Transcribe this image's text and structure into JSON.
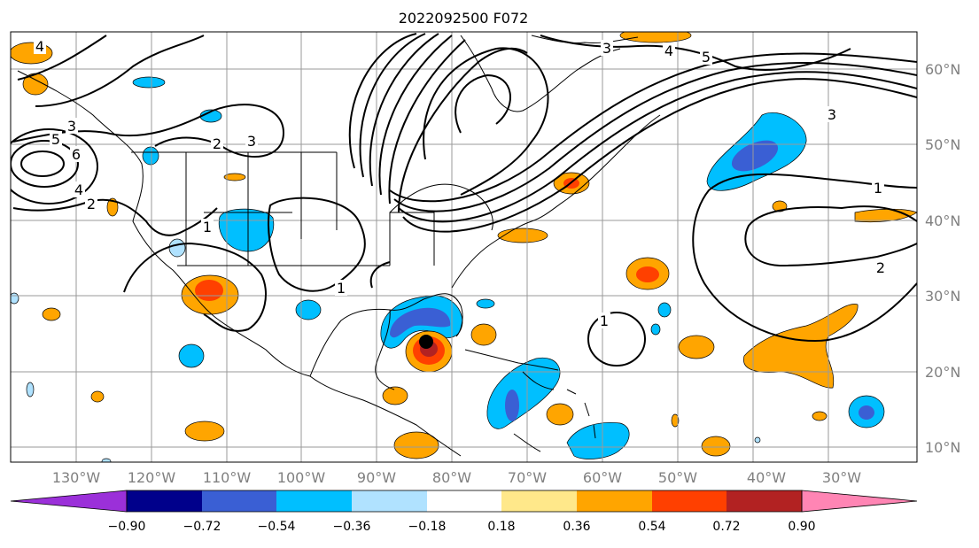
{
  "title": "2022092500 F072",
  "lon_labels": [
    "130°W",
    "120°W",
    "110°W",
    "100°W",
    "90°W",
    "80°W",
    "70°W",
    "60°W",
    "50°W",
    "40°W",
    "30°W"
  ],
  "lat_labels": [
    "60°N",
    "50°N",
    "40°N",
    "30°N",
    "20°N",
    "10°N"
  ],
  "contour_labels": [
    "1",
    "2",
    "3",
    "4",
    "5",
    "6"
  ],
  "colorbar": {
    "ticks": [
      "−0.90",
      "−0.72",
      "−0.54",
      "−0.36",
      "−0.18",
      "0.18",
      "0.36",
      "0.54",
      "0.72",
      "0.90"
    ],
    "colors": [
      "#9b30d9",
      "#00008b",
      "#3a5fd4",
      "#00bfff",
      "#b0e2ff",
      "#ffffff",
      "#ffe88a",
      "#ffa500",
      "#ff4000",
      "#b22222",
      "#ff85b4"
    ]
  },
  "marker": "storm-center"
}
